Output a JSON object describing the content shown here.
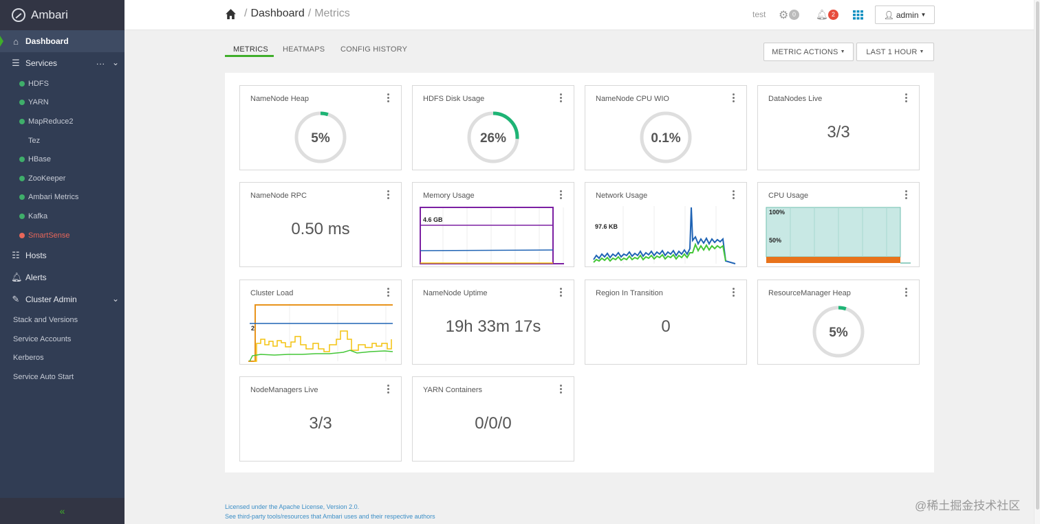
{
  "app": {
    "name": "Ambari"
  },
  "sidebar": {
    "dashboard": "Dashboard",
    "services_label": "Services",
    "services_dots": "...",
    "services": [
      {
        "label": "HDFS",
        "status": "green"
      },
      {
        "label": "YARN",
        "status": "green"
      },
      {
        "label": "MapReduce2",
        "status": "green"
      },
      {
        "label": "Tez",
        "status": "none"
      },
      {
        "label": "HBase",
        "status": "green"
      },
      {
        "label": "ZooKeeper",
        "status": "green"
      },
      {
        "label": "Ambari Metrics",
        "status": "green"
      },
      {
        "label": "Kafka",
        "status": "green"
      },
      {
        "label": "SmartSense",
        "status": "red"
      }
    ],
    "hosts": "Hosts",
    "alerts": "Alerts",
    "cluster_admin": "Cluster Admin",
    "admin_items": [
      "Stack and Versions",
      "Service Accounts",
      "Kerberos",
      "Service Auto Start"
    ],
    "collapse": "«"
  },
  "header": {
    "breadcrumb_root": "Dashboard",
    "breadcrumb_sep": "/",
    "breadcrumb_current": "Metrics",
    "cluster_name": "test",
    "ops_count": "0",
    "alerts_count": "2",
    "user": "admin"
  },
  "tabs": [
    "METRICS",
    "HEATMAPS",
    "CONFIG HISTORY"
  ],
  "actions": {
    "metric_actions": "METRIC ACTIONS",
    "time_range": "LAST 1 HOUR"
  },
  "widgets": {
    "namenode_heap": {
      "title": "NameNode Heap",
      "value": "5%",
      "fraction": 0.05
    },
    "hdfs_disk": {
      "title": "HDFS Disk Usage",
      "value": "26%",
      "fraction": 0.26
    },
    "namenode_cpu": {
      "title": "NameNode CPU WIO",
      "value": "0.1%",
      "fraction": 0.001
    },
    "datanodes_live": {
      "title": "DataNodes Live",
      "value": "3/3"
    },
    "namenode_rpc": {
      "title": "NameNode RPC",
      "value": "0.50 ms"
    },
    "memory_usage": {
      "title": "Memory Usage",
      "label": "4.6 GB"
    },
    "network_usage": {
      "title": "Network Usage",
      "label": "97.6 KB"
    },
    "cpu_usage": {
      "title": "CPU Usage",
      "label_top": "100%",
      "label_mid": "50%"
    },
    "cluster_load": {
      "title": "Cluster Load",
      "label": "2"
    },
    "namenode_uptime": {
      "title": "NameNode Uptime",
      "value": "19h 33m 17s"
    },
    "region_transition": {
      "title": "Region In Transition",
      "value": "0"
    },
    "rm_heap": {
      "title": "ResourceManager Heap",
      "value": "5%",
      "fraction": 0.05
    },
    "nodemanagers_live": {
      "title": "NodeManagers Live",
      "value": "3/3"
    },
    "yarn_containers": {
      "title": "YARN Containers",
      "value": "0/0/0"
    }
  },
  "footer": {
    "license": "Licensed under the Apache License, Version 2.0.",
    "third_party": "See third-party tools/resources that Ambari uses and their respective authors"
  },
  "watermark": "@稀土掘金技术社区",
  "colors": {
    "green": "#3fae6a",
    "accent": "#3fae2a",
    "gauge_fill": "#1eb475",
    "gauge_track": "#dedede"
  }
}
